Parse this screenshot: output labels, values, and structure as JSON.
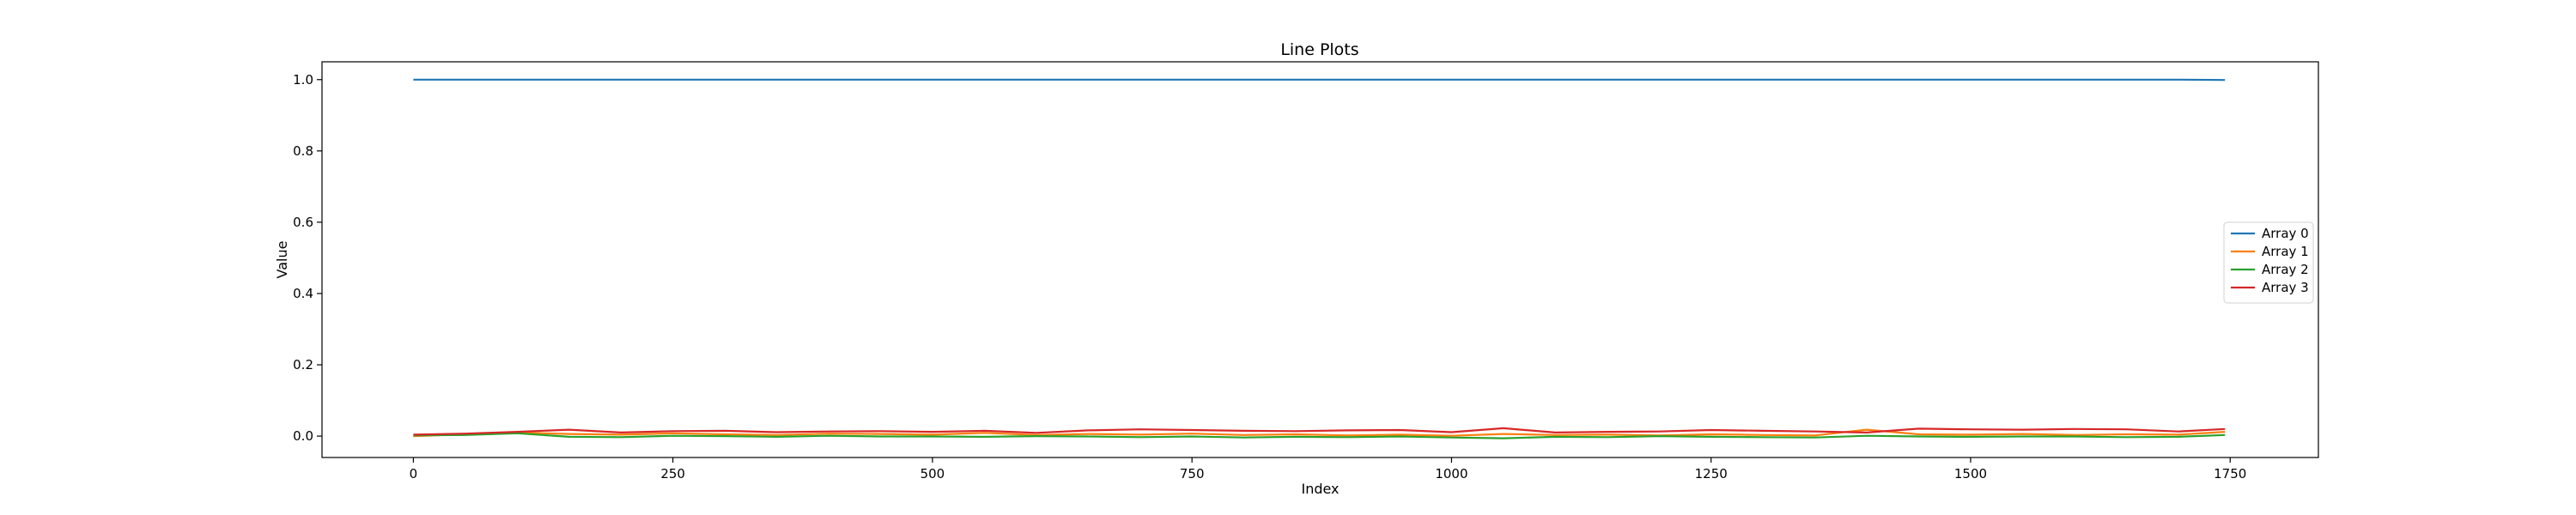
{
  "chart_data": {
    "type": "line",
    "title": "Line Plots",
    "xlabel": "Index",
    "ylabel": "Value",
    "xlim": [
      -88,
      1835
    ],
    "ylim": [
      -0.06,
      1.05
    ],
    "xticks": [
      0,
      250,
      500,
      750,
      1000,
      1250,
      1500,
      1750
    ],
    "yticks": [
      0.0,
      0.2,
      0.4,
      0.6,
      0.8,
      1.0
    ],
    "xtick_labels": [
      "0",
      "250",
      "500",
      "750",
      "1000",
      "1250",
      "1500",
      "1750"
    ],
    "ytick_labels": [
      "0.0",
      "0.2",
      "0.4",
      "0.6",
      "0.8",
      "1.0"
    ],
    "legend_position": "center-right",
    "grid": false,
    "x": [
      0,
      50,
      100,
      150,
      200,
      250,
      300,
      350,
      400,
      450,
      500,
      550,
      600,
      650,
      700,
      750,
      800,
      850,
      900,
      950,
      1000,
      1050,
      1100,
      1150,
      1200,
      1250,
      1300,
      1350,
      1400,
      1450,
      1500,
      1550,
      1600,
      1650,
      1700,
      1745
    ],
    "series": [
      {
        "name": "Array 0",
        "color": "#1f77b4",
        "values": [
          1.0,
          1.0,
          1.0,
          1.0,
          1.0,
          1.0,
          1.0,
          1.0,
          1.0,
          1.0,
          1.0,
          1.0,
          1.0,
          1.0,
          1.0,
          1.0,
          1.0,
          1.0,
          1.0,
          1.0,
          1.0,
          1.0,
          1.0,
          1.0,
          1.0,
          1.0,
          1.0,
          1.0,
          1.0,
          1.0,
          1.0,
          1.0,
          1.0,
          1.0,
          1.0,
          0.999
        ]
      },
      {
        "name": "Array 1",
        "color": "#ff7f0e",
        "values": [
          0.0,
          0.005,
          0.01,
          0.006,
          0.004,
          0.008,
          0.005,
          0.003,
          0.007,
          0.006,
          0.004,
          0.009,
          0.003,
          0.006,
          0.004,
          0.007,
          0.003,
          0.005,
          0.002,
          0.004,
          0.001,
          0.006,
          0.003,
          0.004,
          0.002,
          0.005,
          0.003,
          0.002,
          0.018,
          0.005,
          0.004,
          0.006,
          0.003,
          0.005,
          0.004,
          0.012
        ]
      },
      {
        "name": "Array 2",
        "color": "#2ca02c",
        "values": [
          0.002,
          0.003,
          0.008,
          -0.002,
          -0.003,
          0.001,
          0.0,
          -0.002,
          0.001,
          -0.001,
          -0.001,
          -0.002,
          0.0,
          -0.001,
          -0.003,
          -0.001,
          -0.004,
          -0.002,
          -0.003,
          -0.001,
          -0.004,
          -0.006,
          -0.002,
          -0.003,
          0.0,
          -0.002,
          -0.003,
          -0.004,
          0.001,
          -0.001,
          -0.002,
          -0.001,
          -0.001,
          -0.003,
          -0.002,
          0.003
        ]
      },
      {
        "name": "Array 3",
        "color": "#d62728",
        "values": [
          0.004,
          0.007,
          0.012,
          0.018,
          0.01,
          0.014,
          0.015,
          0.011,
          0.013,
          0.014,
          0.012,
          0.015,
          0.009,
          0.016,
          0.019,
          0.017,
          0.015,
          0.014,
          0.016,
          0.017,
          0.011,
          0.022,
          0.01,
          0.012,
          0.013,
          0.017,
          0.015,
          0.013,
          0.01,
          0.021,
          0.019,
          0.018,
          0.02,
          0.019,
          0.013,
          0.02
        ]
      }
    ]
  }
}
